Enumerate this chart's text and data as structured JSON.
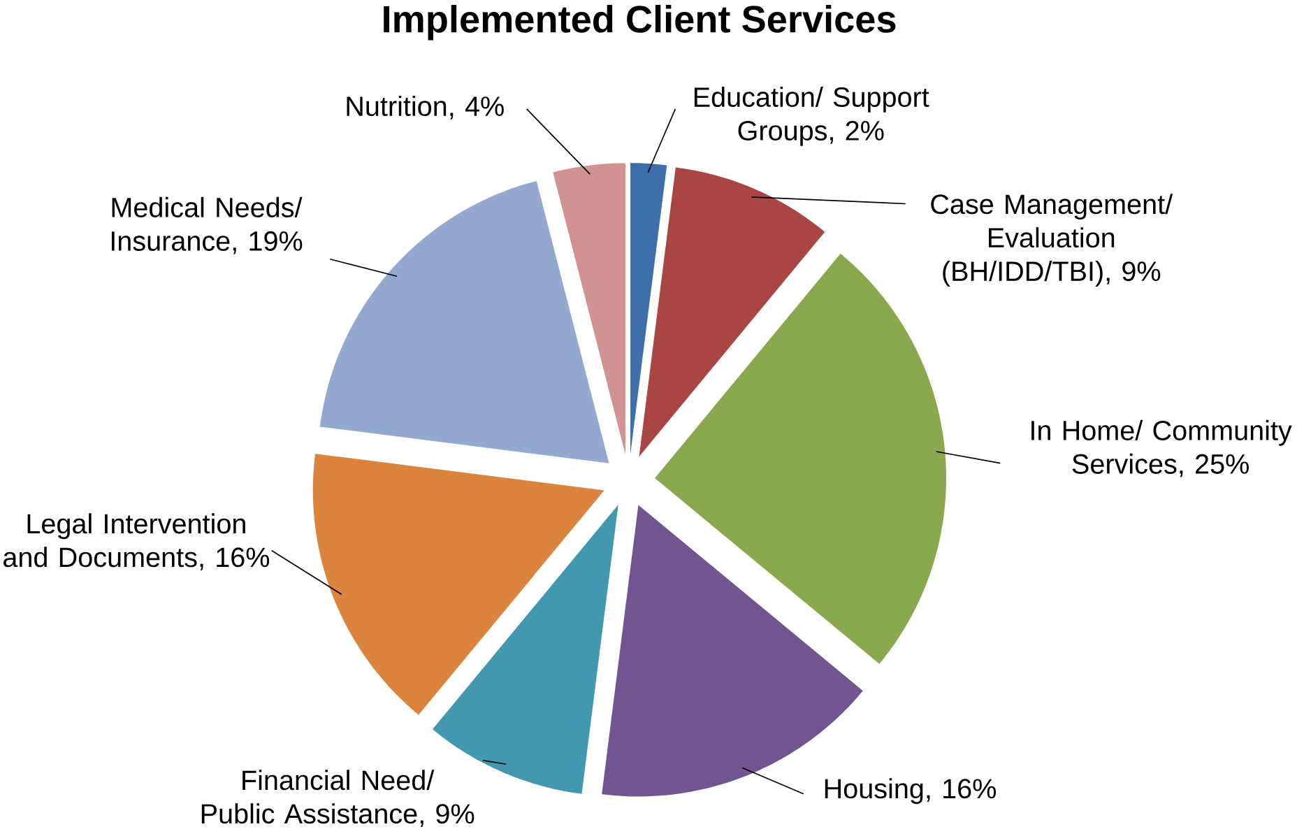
{
  "chart_data": {
    "type": "pie",
    "title": "Implemented Client Services",
    "categories": [
      "Education/ Support Groups",
      "Case Management/ Evaluation (BH/IDD/TBI)",
      "In Home/ Community Services",
      "Housing",
      "Financial Need/ Public Assistance",
      "Legal Intervention and Documents",
      "Medical Needs/ Insurance",
      "Nutrition"
    ],
    "values": [
      2,
      9,
      25,
      16,
      9,
      16,
      19,
      4
    ],
    "value_labels": [
      ", 2%",
      ", 9%",
      ", 25%",
      ", 16%",
      ", 9%",
      ", 16%",
      ", 19%",
      ", 4%"
    ],
    "colors": [
      "#3f6fa9",
      "#a94543",
      "#8aa84e",
      "#715590",
      "#4198af",
      "#db843d",
      "#93a9cf",
      "#d19392"
    ]
  }
}
